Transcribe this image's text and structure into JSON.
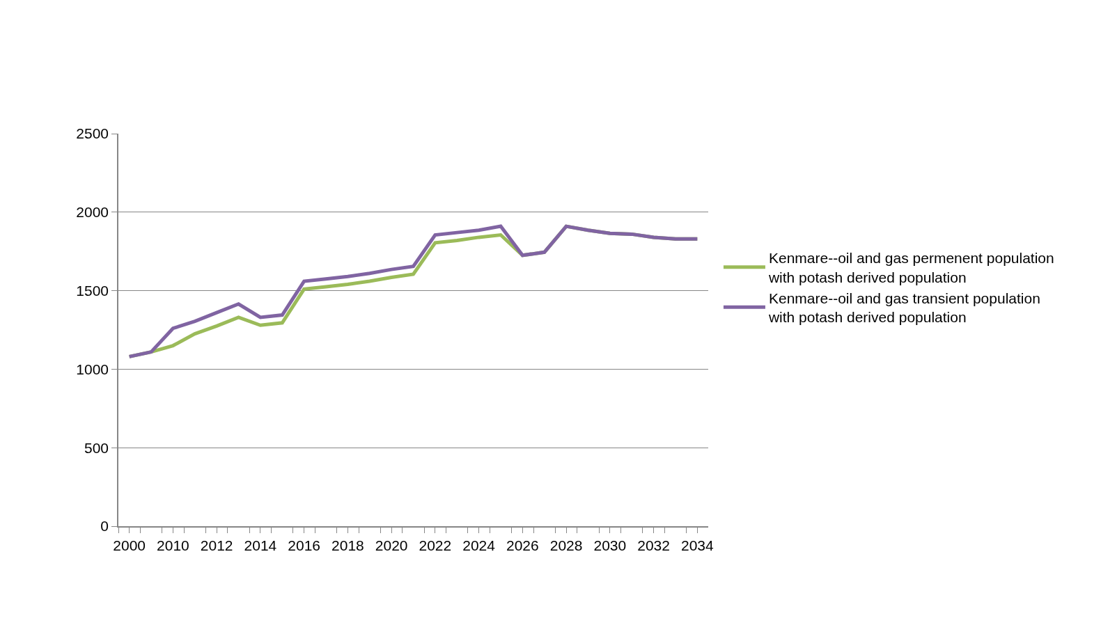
{
  "chart_data": {
    "type": "line",
    "categories": [
      "2000",
      null,
      "2010",
      null,
      "2012",
      null,
      "2014",
      null,
      "2016",
      null,
      "2018",
      null,
      "2020",
      null,
      "2022",
      null,
      "2024",
      null,
      "2026",
      null,
      "2028",
      null,
      "2030",
      null,
      "2032",
      null,
      "2034"
    ],
    "series": [
      {
        "name": "Kenmare--oil and gas permenent population with potash derived population",
        "color": "#9bbb59",
        "values": [
          1080,
          1110,
          1150,
          1225,
          1275,
          1330,
          1280,
          1295,
          1510,
          1525,
          1540,
          1560,
          1585,
          1605,
          1805,
          1820,
          1840,
          1855,
          1725,
          1745,
          1910,
          1885,
          1865,
          1860,
          1840,
          1830,
          1830
        ]
      },
      {
        "name": "Kenmare--oil and gas transient population with potash derived population",
        "color": "#8064a2",
        "values": [
          1080,
          1110,
          1260,
          1305,
          1360,
          1415,
          1330,
          1345,
          1560,
          1575,
          1590,
          1610,
          1635,
          1655,
          1855,
          1870,
          1885,
          1910,
          1725,
          1745,
          1910,
          1885,
          1865,
          1860,
          1840,
          1830,
          1830
        ]
      }
    ],
    "ylim": [
      0,
      2500
    ],
    "yticks": [
      0,
      500,
      1000,
      1500,
      2000,
      2500
    ],
    "grid": "y",
    "legend": "right",
    "marker": "none",
    "line_style": "solid"
  }
}
